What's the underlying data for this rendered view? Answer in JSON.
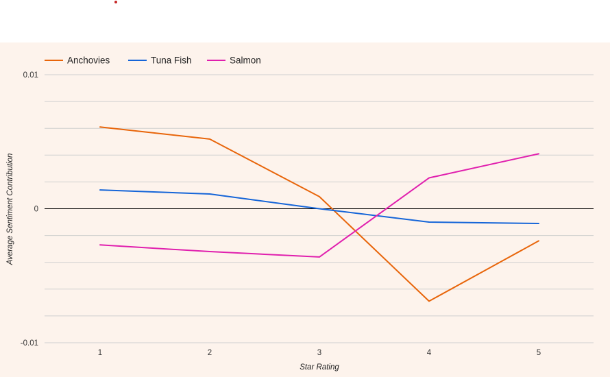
{
  "chart_data": {
    "type": "line",
    "title": "",
    "xlabel": "Star Rating",
    "ylabel": "Average Sentiment Contribution",
    "categories": [
      "1",
      "2",
      "3",
      "4",
      "5"
    ],
    "x": [
      1,
      2,
      3,
      4,
      5
    ],
    "ylim": [
      -0.01,
      0.01
    ],
    "y_ticks": [
      {
        "value": 0.01,
        "label": "0.01"
      },
      {
        "value": 0,
        "label": "0"
      },
      {
        "value": -0.01,
        "label": "-0.01"
      }
    ],
    "y_gridlines": [
      0.01,
      0.008,
      0.006,
      0.004,
      0.002,
      0,
      -0.002,
      -0.004,
      -0.006,
      -0.008,
      -0.01
    ],
    "grid": true,
    "legend_position": "top-left",
    "series": [
      {
        "name": "Anchovies",
        "color": "#e8650a",
        "values": [
          0.0061,
          0.0052,
          0.0009,
          -0.0069,
          -0.0024
        ]
      },
      {
        "name": "Tuna Fish",
        "color": "#1565d8",
        "values": [
          0.0014,
          0.0011,
          0.0,
          -0.001,
          -0.0011
        ]
      },
      {
        "name": "Salmon",
        "color": "#e01fae",
        "values": [
          -0.0027,
          -0.0032,
          -0.0036,
          0.0023,
          0.0041
        ]
      }
    ]
  },
  "colors": {
    "panel_background": "#fdf3ec",
    "gridline": "#cfcfcf",
    "zero_line": "#000000",
    "marker_dot": "#c62828"
  }
}
